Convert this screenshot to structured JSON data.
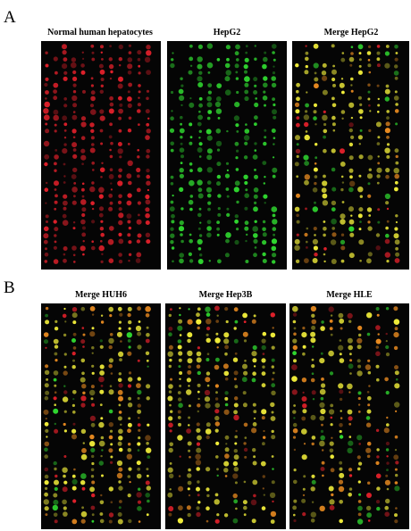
{
  "panel_a": {
    "letter": "A",
    "arrays": [
      {
        "title": "Normal human hepatocytes",
        "palette": "red"
      },
      {
        "title": "HepG2",
        "palette": "green"
      },
      {
        "title": "Merge HepG2",
        "palette": "merge"
      }
    ]
  },
  "panel_b": {
    "letter": "B",
    "arrays": [
      {
        "title": "Merge HUH6",
        "palette": "merge"
      },
      {
        "title": "Merge Hep3B",
        "palette": "merge"
      },
      {
        "title": "Merge HLE",
        "palette": "merge-red"
      }
    ]
  },
  "colors": {
    "background": "#ffffff",
    "array_bg": "#050505",
    "red": "#e0202a",
    "green": "#2fd52f",
    "yellow": "#f2ee3a",
    "orange": "#e88a20"
  }
}
